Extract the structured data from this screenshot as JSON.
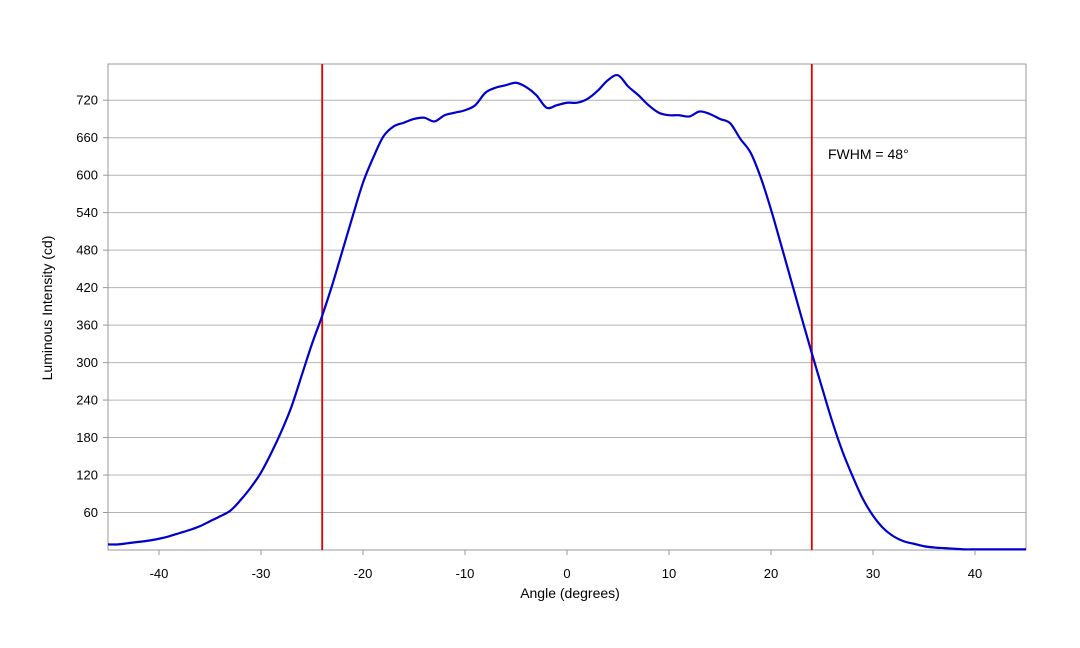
{
  "chart_data": {
    "type": "line",
    "title": "",
    "xlabel": "Angle (degrees)",
    "ylabel": "Luminous Intensity (cd)",
    "xlim": [
      -45,
      45
    ],
    "ylim": [
      0,
      778
    ],
    "x_ticks": [
      -40,
      -30,
      -20,
      -10,
      0,
      10,
      20,
      30,
      40
    ],
    "y_ticks": [
      60,
      120,
      180,
      240,
      300,
      360,
      420,
      480,
      540,
      600,
      660,
      720
    ],
    "grid": {
      "horizontal": true,
      "vertical": false
    },
    "annotation": "FWHM = 48°",
    "fwhm_lines_x": [
      -24,
      24
    ],
    "colors": {
      "line": "#0000cc",
      "fwhm_lines": "#e00000",
      "grid": "#b4b4b4",
      "frame": "#999999"
    },
    "series": [
      {
        "x": [
          -45,
          -44,
          -43,
          -42,
          -41,
          -40,
          -39,
          -38,
          -37,
          -36,
          -35,
          -34,
          -33,
          -32,
          -31,
          -30,
          -29,
          -28,
          -27,
          -26,
          -25,
          -24,
          -23,
          -22,
          -21,
          -20,
          -19,
          -18,
          -17,
          -16,
          -15,
          -14,
          -13,
          -12,
          -11,
          -10,
          -9,
          -8,
          -7,
          -6,
          -5,
          -4,
          -3,
          -2,
          -1,
          0,
          1,
          2,
          3,
          4,
          5,
          6,
          7,
          8,
          9,
          10,
          11,
          12,
          13,
          14,
          15,
          16,
          17,
          18,
          19,
          20,
          21,
          22,
          23,
          24,
          25,
          26,
          27,
          28,
          29,
          30,
          31,
          32,
          33,
          34,
          35,
          36,
          37,
          38,
          39,
          40,
          41,
          42,
          43,
          44,
          45
        ],
        "values": [
          9,
          9,
          11,
          13,
          15,
          18,
          22,
          27,
          32,
          38,
          46,
          54,
          63,
          80,
          100,
          124,
          155,
          190,
          230,
          280,
          330,
          375,
          425,
          480,
          535,
          588,
          628,
          662,
          678,
          684,
          690,
          692,
          686,
          696,
          700,
          704,
          712,
          732,
          740,
          744,
          748,
          741,
          728,
          708,
          712,
          716,
          716,
          722,
          735,
          752,
          760,
          742,
          728,
          712,
          700,
          696,
          696,
          694,
          702,
          698,
          690,
          683,
          658,
          636,
          596,
          545,
          488,
          430,
          372,
          315,
          260,
          206,
          158,
          118,
          82,
          55,
          35,
          22,
          14,
          10,
          6,
          4,
          3,
          2,
          1,
          1,
          1,
          1,
          1,
          1,
          1
        ]
      }
    ]
  }
}
